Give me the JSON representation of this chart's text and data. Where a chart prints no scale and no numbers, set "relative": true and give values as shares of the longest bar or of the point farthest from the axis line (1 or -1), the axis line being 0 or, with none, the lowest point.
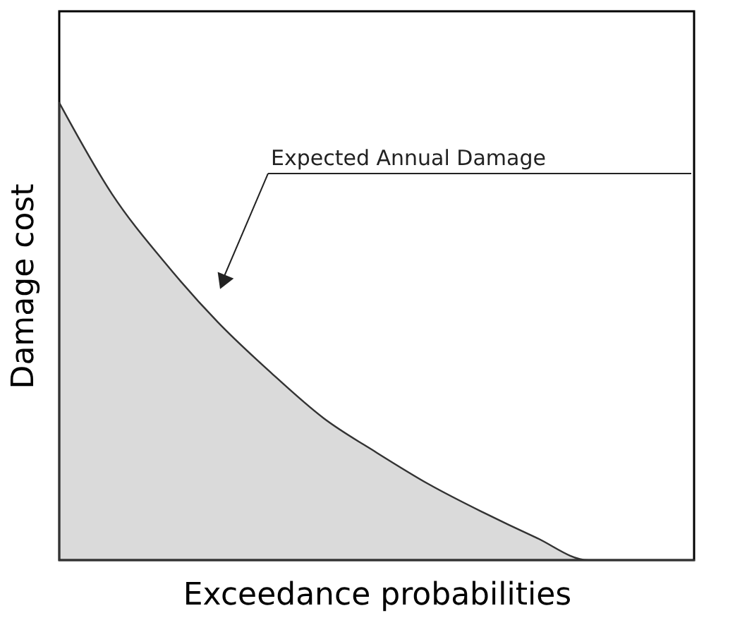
{
  "chart_data": {
    "type": "area",
    "relative": true,
    "xlabel": "Exceedance probabilities",
    "ylabel": "Damage cost",
    "categories": [
      null,
      null,
      null,
      null,
      null,
      null,
      null,
      null,
      null,
      null,
      null,
      null,
      null
    ],
    "series": [
      {
        "color": "#333333",
        "values": [
          1.0,
          0.8,
          0.65,
          0.52,
          0.41,
          0.31,
          0.235,
          0.165,
          0.105,
          0.05,
          0,
          0,
          0
        ]
      }
    ],
    "annotations": [
      "Expected Annual Damage"
    ],
    "grid": false
  }
}
